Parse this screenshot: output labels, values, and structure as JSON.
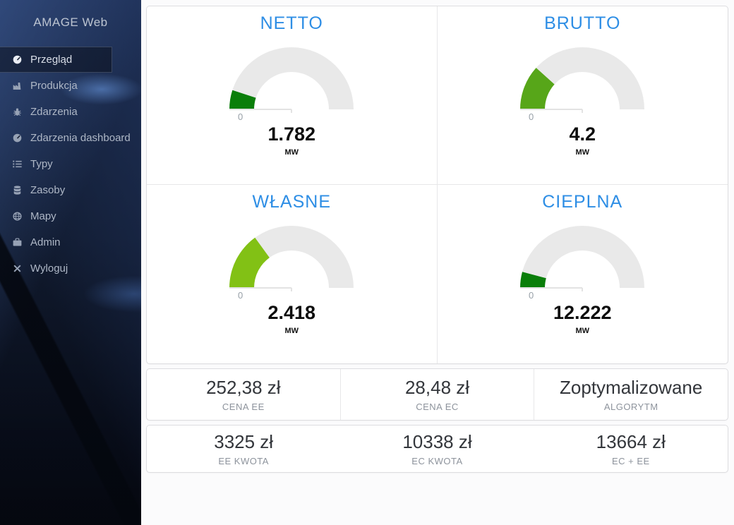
{
  "app": {
    "title": "AMAGE Web"
  },
  "sidebar": {
    "items": [
      {
        "label": "Przegląd",
        "icon": "gauge-icon",
        "active": true
      },
      {
        "label": "Produkcja",
        "icon": "industry-icon",
        "active": false
      },
      {
        "label": "Zdarzenia",
        "icon": "bug-icon",
        "active": false
      },
      {
        "label": "Zdarzenia dashboard",
        "icon": "gauge-icon",
        "active": false
      },
      {
        "label": "Typy",
        "icon": "list-icon",
        "active": false
      },
      {
        "label": "Zasoby",
        "icon": "database-icon",
        "active": false
      },
      {
        "label": "Mapy",
        "icon": "globe-icon",
        "active": false
      },
      {
        "label": "Admin",
        "icon": "briefcase-icon",
        "active": false
      },
      {
        "label": "Wyloguj",
        "icon": "logout-icon",
        "active": false
      }
    ]
  },
  "chart_data": [
    {
      "type": "gauge",
      "title": "NETTO",
      "value": 1.782,
      "unit": "MW",
      "min": 0,
      "sweep_deg": 18,
      "color": "#0a7e0a"
    },
    {
      "type": "gauge",
      "title": "BRUTTO",
      "value": 4.2,
      "unit": "MW",
      "min": 0,
      "sweep_deg": 42,
      "color": "#57a619"
    },
    {
      "type": "gauge",
      "title": "WŁASNE",
      "value": 2.418,
      "unit": "MW",
      "min": 0,
      "sweep_deg": 54,
      "color": "#82c115"
    },
    {
      "type": "gauge",
      "title": "CIEPLNA",
      "value": 12.222,
      "unit": "MW",
      "min": 0,
      "sweep_deg": 15,
      "color": "#0a7e0a"
    }
  ],
  "gauges": [
    {
      "title": "NETTO",
      "value": "1.782",
      "unit": "MW",
      "min_label": "0",
      "sweep_deg": 18,
      "color": "#0a7e0a"
    },
    {
      "title": "BRUTTO",
      "value": "4.2",
      "unit": "MW",
      "min_label": "0",
      "sweep_deg": 42,
      "color": "#57a619"
    },
    {
      "title": "WŁASNE",
      "value": "2.418",
      "unit": "MW",
      "min_label": "0",
      "sweep_deg": 54,
      "color": "#82c115"
    },
    {
      "title": "CIEPLNA",
      "value": "12.222",
      "unit": "MW",
      "min_label": "0",
      "sweep_deg": 15,
      "color": "#0a7e0a"
    }
  ],
  "stats": {
    "row1": [
      {
        "value": "252,38 zł",
        "label": "CENA EE"
      },
      {
        "value": "28,48 zł",
        "label": "CENA EC"
      },
      {
        "value": "Zoptymalizowane",
        "label": "ALGORYTM"
      }
    ],
    "row2": [
      {
        "value": "3325 zł",
        "label": "EE KWOTA"
      },
      {
        "value": "10338 zł",
        "label": "EC KWOTA"
      },
      {
        "value": "13664 zł",
        "label": "EC + EE"
      }
    ]
  },
  "colors": {
    "accent": "#2e8ee5",
    "gauge_track": "#e9e9e9",
    "sidebar_bg": "#0c1424"
  }
}
